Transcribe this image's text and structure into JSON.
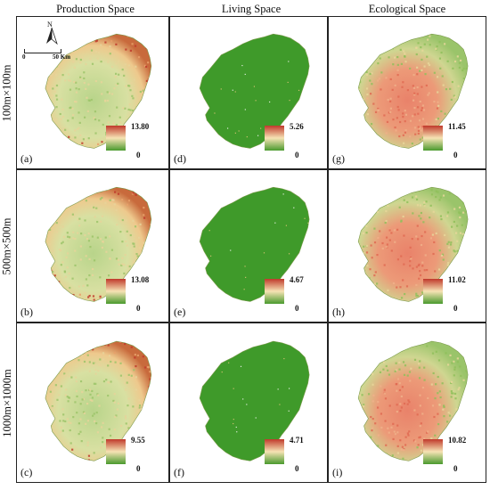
{
  "columns": [
    "Production Space",
    "Living Space",
    "Ecological Space"
  ],
  "rows": [
    "100m×100m",
    "500m×500m",
    "1000m×1000m"
  ],
  "panels": [
    {
      "letter": "(a)",
      "max": "13.80",
      "min": "0",
      "theme": "production",
      "caption": "Production Space 100m×100m"
    },
    {
      "letter": "(d)",
      "max": "5.26",
      "min": "0",
      "theme": "living",
      "caption": "Living Space 100m×100m"
    },
    {
      "letter": "(g)",
      "max": "11.45",
      "min": "0",
      "theme": "ecological",
      "caption": "Ecological Space 100m×100m"
    },
    {
      "letter": "(b)",
      "max": "13.08",
      "min": "0",
      "theme": "production",
      "caption": "Production Space 500m×500m"
    },
    {
      "letter": "(e)",
      "max": "4.67",
      "min": "0",
      "theme": "living",
      "caption": "Living Space 500m×500m"
    },
    {
      "letter": "(h)",
      "max": "11.02",
      "min": "0",
      "theme": "ecological",
      "caption": "Ecological Space 500m×500m"
    },
    {
      "letter": "(c)",
      "max": "9.55",
      "min": "0",
      "theme": "production",
      "caption": "Production Space 1000m×1000m"
    },
    {
      "letter": "(f)",
      "max": "4.71",
      "min": "0",
      "theme": "living",
      "caption": "Living Space 1000m×1000m"
    },
    {
      "letter": "(i)",
      "max": "10.82",
      "min": "0",
      "theme": "ecological",
      "caption": "Ecological Space 1000m×1000m"
    }
  ],
  "north_label": "N",
  "scale": {
    "zero": "0",
    "fifty": "50 Km"
  },
  "colors": {
    "high": "#c0392b",
    "mid": "#f6e3b4",
    "low": "#4a9a2e",
    "living_fill": "#3f9a2a",
    "border": "#222222"
  }
}
